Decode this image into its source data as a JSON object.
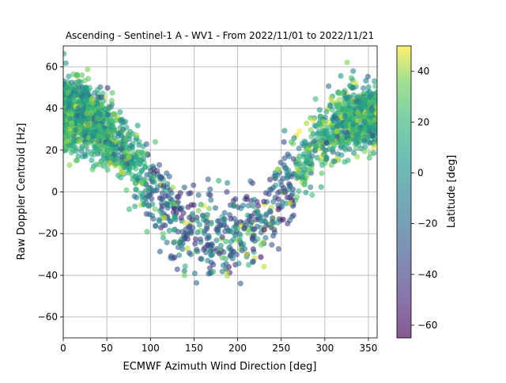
{
  "chart_data": {
    "type": "scatter",
    "title": "Ascending - Sentinel-1 A - WV1 - From 2022/11/01 to 2022/11/21",
    "xlabel": "ECMWF Azimuth Wind Direction [deg]",
    "ylabel": "Raw Doppler Centroid [Hz]",
    "xlim": [
      0,
      360
    ],
    "ylim": [
      -70,
      70
    ],
    "xticks": [
      0,
      50,
      100,
      150,
      200,
      250,
      300,
      350
    ],
    "yticks": [
      -60,
      -40,
      -20,
      0,
      20,
      40,
      60
    ],
    "grid": true,
    "colorbar": {
      "label": "Latitude [deg]",
      "range": [
        -65,
        50
      ],
      "ticks": [
        -60,
        -40,
        -20,
        0,
        20,
        40
      ],
      "colormap": "viridis",
      "alpha": 0.6
    },
    "point_count_approx": 2400,
    "trend": [
      {
        "x": 0,
        "y": 38
      },
      {
        "x": 30,
        "y": 36
      },
      {
        "x": 60,
        "y": 25
      },
      {
        "x": 90,
        "y": 8
      },
      {
        "x": 120,
        "y": -8
      },
      {
        "x": 150,
        "y": -18
      },
      {
        "x": 180,
        "y": -23
      },
      {
        "x": 200,
        "y": -22
      },
      {
        "x": 230,
        "y": -14
      },
      {
        "x": 260,
        "y": 4
      },
      {
        "x": 290,
        "y": 22
      },
      {
        "x": 320,
        "y": 33
      },
      {
        "x": 360,
        "y": 38
      }
    ]
  }
}
